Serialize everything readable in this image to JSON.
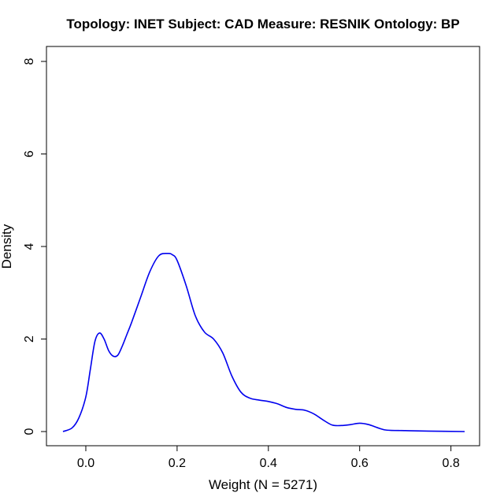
{
  "chart_data": {
    "type": "line",
    "title": "Topology: INET   Subject: CAD   Measure: RESNIK   Ontology: BP",
    "xlabel": "Weight (N = 5271)",
    "ylabel": "Density",
    "xlim": [
      -0.05,
      0.83
    ],
    "ylim": [
      0,
      8
    ],
    "x_ticks": [
      0.0,
      0.2,
      0.4,
      0.6,
      0.8
    ],
    "x_tick_labels": [
      "0.0",
      "0.2",
      "0.4",
      "0.6",
      "0.8"
    ],
    "y_ticks": [
      0,
      2,
      4,
      6,
      8
    ],
    "y_tick_labels": [
      "0",
      "2",
      "4",
      "6",
      "8"
    ],
    "grid": false,
    "series": [
      {
        "color": "#0000ee",
        "x": [
          -0.05,
          -0.03,
          -0.015,
          0.0,
          0.01,
          0.02,
          0.03,
          0.04,
          0.05,
          0.06,
          0.07,
          0.08,
          0.09,
          0.1,
          0.12,
          0.14,
          0.16,
          0.18,
          0.19,
          0.2,
          0.22,
          0.24,
          0.26,
          0.28,
          0.3,
          0.32,
          0.34,
          0.36,
          0.38,
          0.4,
          0.42,
          0.44,
          0.46,
          0.48,
          0.5,
          0.52,
          0.54,
          0.56,
          0.58,
          0.6,
          0.62,
          0.64,
          0.66,
          0.7,
          0.75,
          0.83
        ],
        "y": [
          0.0,
          0.08,
          0.3,
          0.75,
          1.35,
          1.95,
          2.13,
          2.0,
          1.75,
          1.63,
          1.65,
          1.85,
          2.1,
          2.35,
          2.9,
          3.45,
          3.8,
          3.85,
          3.82,
          3.7,
          3.15,
          2.5,
          2.15,
          2.0,
          1.7,
          1.2,
          0.85,
          0.72,
          0.68,
          0.65,
          0.6,
          0.52,
          0.48,
          0.46,
          0.38,
          0.25,
          0.14,
          0.13,
          0.15,
          0.18,
          0.15,
          0.08,
          0.03,
          0.02,
          0.01,
          0.0
        ]
      }
    ]
  }
}
